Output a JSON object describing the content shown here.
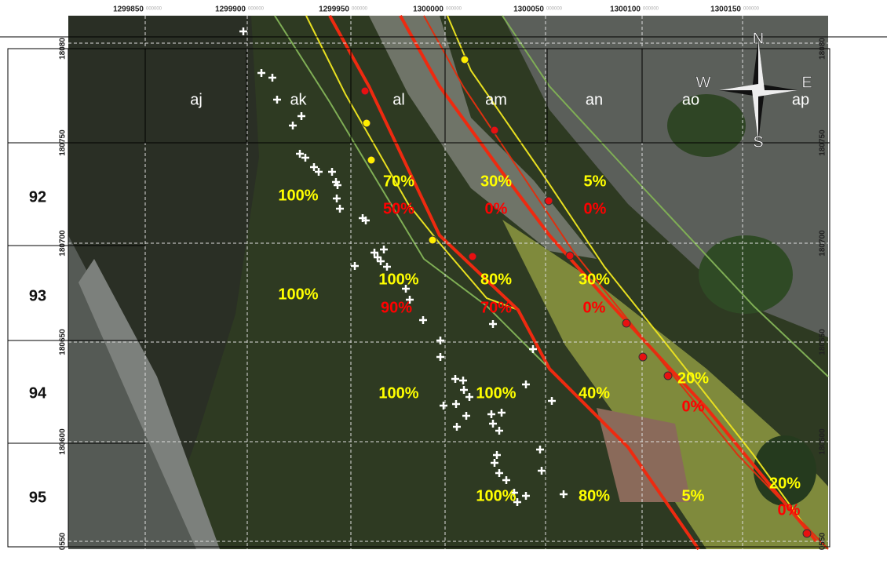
{
  "x_labels": [
    {
      "main": "1299850",
      "decimal": "000000"
    },
    {
      "main": "1299900",
      "decimal": "000000"
    },
    {
      "main": "1299950",
      "decimal": "000000"
    },
    {
      "main": "1300000",
      "decimal": "000000"
    },
    {
      "main": "1300050",
      "decimal": "000000"
    },
    {
      "main": "1300100",
      "decimal": "000000"
    },
    {
      "main": "1300150",
      "decimal": "000000"
    }
  ],
  "y_labels_left": [
    "18080",
    "180750",
    "180700",
    "180650",
    "180600",
    "0550"
  ],
  "y_labels_right": [
    "18080",
    "180750",
    "180700",
    "180650",
    "180600",
    "0550"
  ],
  "columns": [
    "aj",
    "ak",
    "al",
    "am",
    "an",
    "ao",
    "ap"
  ],
  "rows": [
    "92",
    "93",
    "94",
    "95"
  ],
  "compass": [
    "N",
    "S",
    "W",
    "E"
  ],
  "annotations": [
    {
      "text": "100%",
      "color": "#ffff00"
    },
    {
      "text": "70%",
      "color": "#ffff00"
    },
    {
      "text": "50%",
      "color": "#ff0000"
    },
    {
      "text": "30%",
      "color": "#ffff00"
    },
    {
      "text": "0%",
      "color": "#ff0000"
    },
    {
      "text": "5%",
      "color": "#ffff00"
    },
    {
      "text": "0%",
      "color": "#ff0000"
    },
    {
      "text": "100%",
      "color": "#ffff00"
    },
    {
      "text": "100%",
      "color": "#ffff00"
    },
    {
      "text": "90%",
      "color": "#ff0000"
    },
    {
      "text": "80%",
      "color": "#ffff00"
    },
    {
      "text": "70%",
      "color": "#ff0000"
    },
    {
      "text": "30%",
      "color": "#ffff00"
    },
    {
      "text": "0%",
      "color": "#ff0000"
    },
    {
      "text": "100%",
      "color": "#ffff00"
    },
    {
      "text": "100%",
      "color": "#ffff00"
    },
    {
      "text": "40%",
      "color": "#ffff00"
    },
    {
      "text": "20%",
      "color": "#ffff00"
    },
    {
      "text": "0%",
      "color": "#ff0000"
    },
    {
      "text": "100%",
      "color": "#ffff00"
    },
    {
      "text": "80%",
      "color": "#ffff00"
    },
    {
      "text": "5%",
      "color": "#ffff00"
    },
    {
      "text": "20%",
      "color": "#ffff00"
    },
    {
      "text": "0%",
      "color": "#ff0000"
    }
  ]
}
